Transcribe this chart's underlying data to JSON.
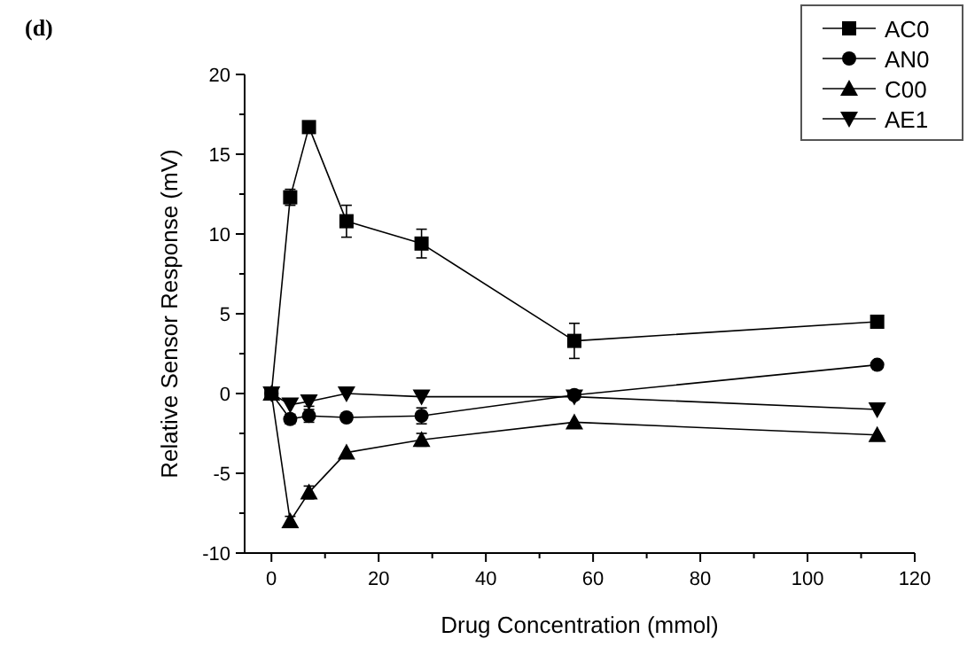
{
  "chart_data": {
    "type": "line",
    "xlabel": "Drug Concentration (mmol)",
    "ylabel": "Relative Sensor Response (mV)",
    "annotations": [
      "(d)"
    ],
    "x": [
      0,
      3.5,
      7,
      14,
      28,
      56.5,
      113
    ],
    "xlim": [
      -5,
      120
    ],
    "xticks": [
      0,
      20,
      40,
      60,
      80,
      100,
      120
    ],
    "ylim": [
      -10,
      20
    ],
    "yticks": [
      -10,
      -5,
      0,
      5,
      10,
      15,
      20
    ],
    "legend": "top right",
    "grid": false,
    "line_style": "solid",
    "series": [
      {
        "name": "AC0",
        "color": "#000000",
        "marker": "square",
        "values": [
          0,
          12.3,
          16.7,
          10.8,
          9.4,
          3.3,
          4.5
        ],
        "errors": [
          null,
          0.5,
          0.3,
          1.0,
          0.9,
          1.1,
          null
        ]
      },
      {
        "name": "AN0",
        "color": "#000000",
        "marker": "circle",
        "values": [
          0,
          -1.6,
          -1.4,
          -1.5,
          -1.4,
          -0.1,
          1.8
        ],
        "errors": [
          null,
          0.3,
          0.4,
          null,
          0.5,
          null,
          null
        ]
      },
      {
        "name": "C00",
        "color": "#000000",
        "marker": "triangle",
        "values": [
          0,
          -8.0,
          -6.2,
          -3.7,
          -2.9,
          -1.8,
          -2.6
        ],
        "errors": [
          null,
          0.3,
          0.4,
          null,
          0.4,
          null,
          null
        ]
      },
      {
        "name": "AE1",
        "color": "#000000",
        "marker": "triangle-down",
        "values": [
          0,
          -0.7,
          -0.5,
          0,
          -0.2,
          -0.2,
          -1.0
        ],
        "errors": [
          null,
          null,
          0.3,
          null,
          null,
          null,
          null
        ]
      }
    ]
  }
}
